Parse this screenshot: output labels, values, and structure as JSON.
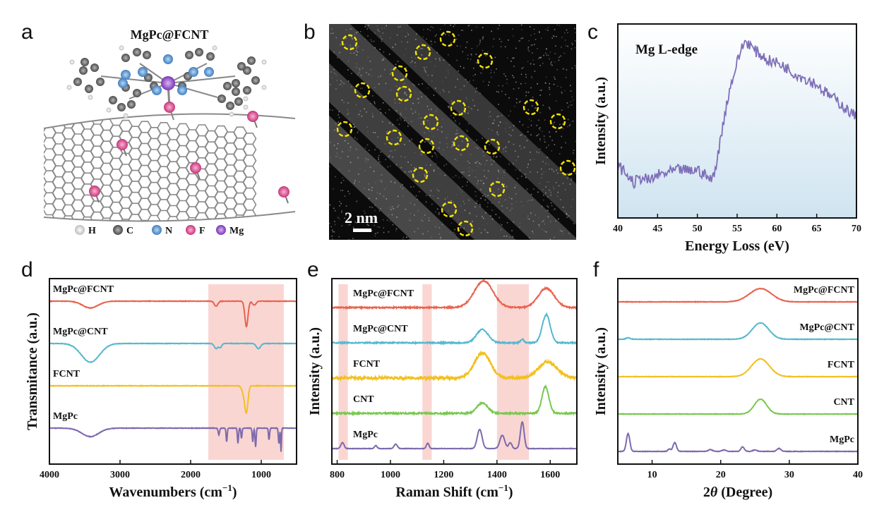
{
  "panel_labels": {
    "a": "a",
    "b": "b",
    "c": "c",
    "d": "d",
    "e": "e",
    "f": "f"
  },
  "panel_a": {
    "title": "MgPc@FCNT",
    "legend": [
      {
        "symbol": "H",
        "color": "#e6e6e6"
      },
      {
        "symbol": "C",
        "color": "#6b6b6b"
      },
      {
        "symbol": "N",
        "color": "#5b9bd5"
      },
      {
        "symbol": "F",
        "color": "#e0559a"
      },
      {
        "symbol": "Mg",
        "color": "#9b55d6"
      }
    ]
  },
  "panel_b": {
    "scale_bar_label": "2 nm",
    "circle_color": "#f5e400"
  },
  "chart_data": [
    {
      "panel": "c",
      "type": "line",
      "annotation": "Mg L-edge",
      "xlabel": "Energy Loss (eV)",
      "ylabel": "Intensity (a.u.)",
      "xlim": [
        40,
        70
      ],
      "xticks": [
        40,
        45,
        50,
        55,
        60,
        65,
        70
      ],
      "series": [
        {
          "color": "#7f6fb8",
          "x": [
            40,
            41,
            42,
            43,
            44,
            45,
            46,
            47,
            48,
            49,
            50,
            51,
            51.8,
            52.5,
            53,
            53.5,
            54,
            54.5,
            55,
            55.5,
            56,
            56.5,
            57,
            58,
            59,
            60,
            61,
            62,
            63,
            64,
            65,
            66,
            67,
            68,
            69,
            70
          ],
          "y": [
            0.52,
            0.48,
            0.43,
            0.46,
            0.44,
            0.47,
            0.48,
            0.49,
            0.5,
            0.49,
            0.5,
            0.47,
            0.44,
            0.55,
            0.68,
            0.8,
            0.9,
            0.98,
            1.05,
            1.12,
            1.16,
            1.15,
            1.12,
            1.09,
            1.06,
            1.05,
            1.03,
            1.0,
            0.98,
            0.96,
            0.94,
            0.9,
            0.87,
            0.84,
            0.8,
            0.77
          ]
        }
      ]
    },
    {
      "panel": "d",
      "type": "line",
      "xlabel": "Wavenumbers (cm",
      "xlabel_sup": "−1",
      "xlabel_end": ")",
      "ylabel": "Transmitance (a.u.)",
      "xlim": [
        4000,
        500
      ],
      "xticks": [
        4000,
        3000,
        2000,
        1000
      ],
      "highlight": [
        [
          1750,
          680
        ]
      ],
      "series": [
        {
          "name": "MgPc@FCNT",
          "color": "#e8634e",
          "offset": 3,
          "features": [
            [
              3420,
              -0.2,
              110
            ],
            [
              1210,
              -0.75,
              22
            ],
            [
              1640,
              -0.15,
              25
            ],
            [
              1100,
              -0.12,
              25
            ]
          ]
        },
        {
          "name": "MgPc@CNT",
          "color": "#55b8cf",
          "offset": 2,
          "features": [
            [
              3420,
              -0.55,
              130
            ],
            [
              1640,
              -0.15,
              25
            ],
            [
              1580,
              -0.12,
              20
            ],
            [
              1040,
              -0.15,
              30
            ]
          ]
        },
        {
          "name": "FCNT",
          "color": "#f2c020",
          "offset": 1,
          "features": [
            [
              1210,
              -0.75,
              22
            ],
            [
              1250,
              -0.2,
              25
            ]
          ]
        },
        {
          "name": "MgPc",
          "color": "#7d6aad",
          "offset": 0,
          "features": [
            [
              3420,
              -0.25,
              120
            ],
            [
              1600,
              -0.2,
              10
            ],
            [
              1490,
              -0.4,
              8
            ],
            [
              1330,
              -0.45,
              8
            ],
            [
              1280,
              -0.3,
              8
            ],
            [
              1120,
              -0.4,
              8
            ],
            [
              1080,
              -0.55,
              8
            ],
            [
              890,
              -0.35,
              8
            ],
            [
              750,
              -0.45,
              8
            ],
            [
              720,
              -0.7,
              6
            ]
          ]
        }
      ]
    },
    {
      "panel": "e",
      "type": "line",
      "xlabel": "Raman Shift (cm",
      "xlabel_sup": "−1",
      "xlabel_end": ")",
      "ylabel": "Intensity (a.u.)",
      "xlim": [
        780,
        1700
      ],
      "xticks": [
        800,
        1000,
        1200,
        1400,
        1600
      ],
      "highlight": [
        [
          805,
          840
        ],
        [
          1120,
          1155
        ],
        [
          1400,
          1520
        ]
      ],
      "series": [
        {
          "name": "MgPc@FCNT",
          "color": "#e8634e",
          "offset": 4,
          "noise": 0.04,
          "features": [
            [
              1350,
              0.9,
              35
            ],
            [
              1585,
              0.65,
              30
            ]
          ]
        },
        {
          "name": "MgPc@CNT",
          "color": "#55b8cf",
          "offset": 3,
          "noise": 0.04,
          "features": [
            [
              1345,
              0.45,
              22
            ],
            [
              1585,
              0.95,
              15
            ],
            [
              1495,
              0.12,
              6
            ]
          ]
        },
        {
          "name": "FCNT",
          "color": "#f2c020",
          "offset": 2,
          "noise": 0.09,
          "features": [
            [
              1345,
              0.85,
              30
            ],
            [
              1590,
              0.55,
              35
            ]
          ]
        },
        {
          "name": "CNT",
          "color": "#78c850",
          "offset": 1,
          "noise": 0.05,
          "features": [
            [
              1345,
              0.35,
              20
            ],
            [
              1582,
              0.9,
              13
            ]
          ]
        },
        {
          "name": "MgPc",
          "color": "#7d6aad",
          "offset": 0,
          "noise": 0.015,
          "features": [
            [
              820,
              0.2,
              6
            ],
            [
              945,
              0.1,
              5
            ],
            [
              1020,
              0.15,
              6
            ],
            [
              1140,
              0.18,
              5
            ],
            [
              1335,
              0.65,
              9
            ],
            [
              1420,
              0.45,
              9
            ],
            [
              1450,
              0.2,
              6
            ],
            [
              1495,
              0.9,
              7
            ]
          ]
        }
      ]
    },
    {
      "panel": "f",
      "type": "line",
      "xlabel": "2θ (Degree)",
      "ylabel": "Intensity (a.u.)",
      "xlim": [
        5,
        40
      ],
      "xticks": [
        10,
        20,
        30,
        40
      ],
      "series": [
        {
          "name": "MgPc@FCNT",
          "color": "#e8634e",
          "offset": 4,
          "features": [
            [
              25.8,
              0.45,
              1.6
            ]
          ]
        },
        {
          "name": "MgPc@CNT",
          "color": "#55b8cf",
          "offset": 3,
          "features": [
            [
              25.8,
              0.55,
              1.2
            ],
            [
              6.5,
              0.05,
              0.3
            ]
          ]
        },
        {
          "name": "FCNT",
          "color": "#f2c020",
          "offset": 2,
          "features": [
            [
              25.8,
              0.6,
              1.3
            ]
          ]
        },
        {
          "name": "CNT",
          "color": "#78c850",
          "offset": 1,
          "features": [
            [
              25.8,
              0.5,
              0.9
            ]
          ]
        },
        {
          "name": "MgPc",
          "color": "#7d6aad",
          "offset": 0,
          "features": [
            [
              6.5,
              0.6,
              0.25
            ],
            [
              13.3,
              0.3,
              0.25
            ],
            [
              12.5,
              0.08,
              0.2
            ],
            [
              18.5,
              0.06,
              0.3
            ],
            [
              20.5,
              0.05,
              0.3
            ],
            [
              23.2,
              0.15,
              0.25
            ],
            [
              25.0,
              0.05,
              0.3
            ],
            [
              28.5,
              0.1,
              0.3
            ]
          ]
        }
      ]
    }
  ]
}
